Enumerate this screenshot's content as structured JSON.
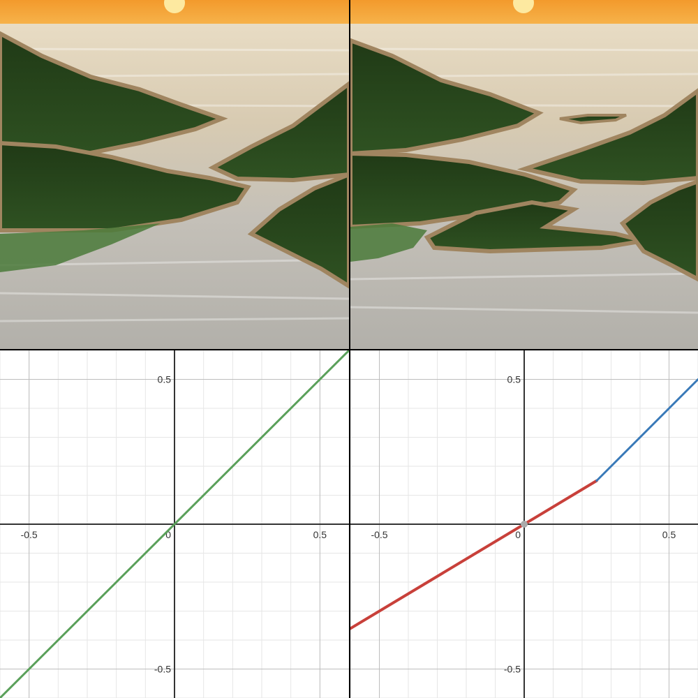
{
  "colors": {
    "sky": "#f3a233",
    "sun": "#fde9a0",
    "water": "#cfc6b6",
    "grass": "#2a4a1c",
    "shore": "#a08560",
    "line_identity": "#5aa05a",
    "line_low": "#c8403a",
    "line_high": "#3a7ab8",
    "point": "#aaaaaa"
  },
  "chart_data": [
    {
      "type": "line",
      "title": "",
      "xlabel": "",
      "ylabel": "",
      "xlim": [
        -0.6,
        0.6
      ],
      "ylim": [
        -0.6,
        0.6
      ],
      "grid": true,
      "x_ticks": [
        "-0.5",
        "0",
        "0.5"
      ],
      "y_ticks": [
        "0.5",
        "-0.5"
      ],
      "series": [
        {
          "x": [
            -0.6,
            0.6
          ],
          "y": [
            -0.6,
            0.6
          ]
        }
      ]
    },
    {
      "type": "line",
      "title": "",
      "xlabel": "",
      "ylabel": "",
      "xlim": [
        -0.6,
        0.6
      ],
      "ylim": [
        -0.6,
        0.6
      ],
      "grid": true,
      "x_ticks": [
        "-0.5",
        "0",
        "0.5"
      ],
      "y_ticks": [
        "0.5",
        "-0.5"
      ],
      "series": [
        {
          "x": [
            -0.6,
            0.25
          ],
          "y": [
            -0.36,
            0.15
          ]
        },
        {
          "x": [
            0.25,
            0.6
          ],
          "y": [
            0.15,
            0.5
          ]
        }
      ],
      "points": [
        {
          "x": 0,
          "y": 0
        }
      ]
    }
  ]
}
